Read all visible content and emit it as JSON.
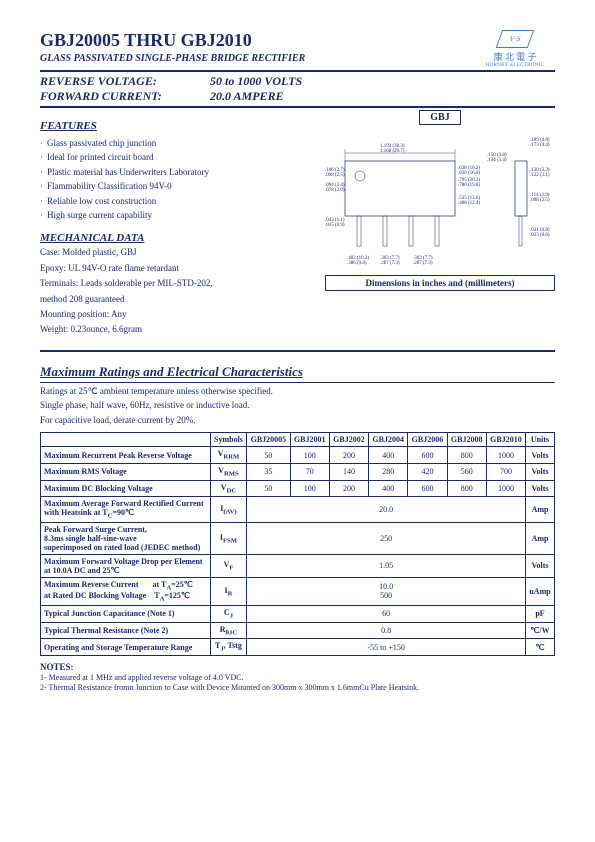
{
  "header": {
    "title": "GBJ20005 THRU GBJ2010",
    "subtitle": "GLASS PASSIVATED SINGLE-PHASE BRIDGE RECTIFIER",
    "reverse_voltage_label": "REVERSE VOLTAGE:",
    "reverse_voltage_value": "50 to 1000 VOLTS",
    "forward_current_label": "FORWARD CURRENT:",
    "forward_current_value": "20.0 AMPERE",
    "logo_text": "V·S",
    "logo_cn": "康 北 電 子",
    "logo_en": "HORNBY ELECTRONIC"
  },
  "features": {
    "title": "FEATURES",
    "items": [
      "Glass passivated chip junction",
      "Ideal for printed circuit board",
      "Plastic material has Underwriters Laboratory",
      "Flammability Classification 94V-0",
      "Reliable low cost construction",
      "High surge current capability"
    ]
  },
  "package": {
    "label": "GBJ",
    "caption": "Dimensions in inches and (millimeters)",
    "dims_front": [
      "1.193 (30.3)",
      "1.168 (29.7)",
      ".106 (2.7)",
      ".098 (2.5)",
      ".094 (2.4)",
      ".078 (2.0)",
      ".043 (1.1)",
      ".035 (0.9)",
      ".402 (10.2)",
      ".386 (9.8)",
      ".303 (7.7)",
      ".287 (7.3)",
      ".795 (20.2)",
      ".780 (19.8)",
      ".535 (13.6)",
      ".488 (12.4)",
      ".638 (16.2)",
      ".630 (16.0)"
    ],
    "dims_side": [
      ".189 (4.8)",
      ".173 (4.4)",
      ".150 (3.8)",
      ".134 (3.4)",
      ".130 (3.3)",
      ".122 (3.1)",
      ".114 (2.9)",
      ".098 (2.5)",
      ".031 (0.8)",
      ".023 (0.6)"
    ]
  },
  "mechanical": {
    "title": "MECHANICAL DATA",
    "lines": [
      "Case: Molded plastic, GBJ",
      "Epoxy: UL 94V-O rate flame retardant",
      "Terminals: Leads solderable per MIL-STD-202,",
      "method 208 guaranteed",
      "Mounting position: Any",
      "Weight: 0.23ounce, 6.6gram"
    ]
  },
  "ratings": {
    "title": "Maximum Ratings and Electrical Characteristics",
    "intro": [
      "Ratings at 25℃ ambient temperature unless otherwise specified.",
      "Single phase, half wave, 60Hz, resistive or inductive load.",
      "For capacitive load, derate current by 20%."
    ],
    "columns": [
      "Symbols",
      "GBJ20005",
      "GBJ2001",
      "GBJ2002",
      "GBJ2004",
      "GBJ2006",
      "GBJ2008",
      "GBJ2010",
      "Units"
    ],
    "rows": [
      {
        "desc": "Maximum Recurrent Peak Reverse Voltage",
        "sym": "V<sub>RRM</sub>",
        "vals": [
          "50",
          "100",
          "200",
          "400",
          "600",
          "800",
          "1000"
        ],
        "unit": "Volts"
      },
      {
        "desc": "Maximum RMS Voltage",
        "sym": "V<sub>RMS</sub>",
        "vals": [
          "35",
          "70",
          "140",
          "280",
          "420",
          "560",
          "700"
        ],
        "unit": "Volts"
      },
      {
        "desc": "Maximum DC Blocking Voltage",
        "sym": "V<sub>DC</sub>",
        "vals": [
          "50",
          "100",
          "200",
          "400",
          "600",
          "800",
          "1000"
        ],
        "unit": "Volts"
      },
      {
        "desc": "Maximum Average Forward Rectified Current<br>with Heatsink at T<sub>C</sub>=90℃",
        "sym": "I<sub>(AV)</sub>",
        "span": "20.0",
        "unit": "Amp"
      },
      {
        "desc": "Peak Forward Surge Current,<br>8.3ms single half-sine-wave<br>superimposed on rated load (JEDEC method)",
        "sym": "I<sub>FSM</sub>",
        "span": "250",
        "unit": "Amp"
      },
      {
        "desc": "Maximum Forward Voltage Drop per Element<br>at 10.0A DC and 25℃",
        "sym": "V<sub>F</sub>",
        "span": "1.05",
        "unit": "Volts"
      },
      {
        "desc": "Maximum Reverse Current&nbsp;&nbsp;&nbsp;&nbsp;&nbsp;&nbsp;&nbsp;at T<sub>A</sub>=25℃<br>at Rated DC Blocking Voltage&nbsp;&nbsp;&nbsp;&nbsp;T<sub>A</sub>=125℃",
        "sym": "I<sub>R</sub>",
        "span": "10.0<br>500",
        "unit": "uAmp"
      },
      {
        "desc": "Typical Junction Capacitance (Note 1)",
        "sym": "C<sub>J</sub>",
        "span": "60",
        "unit": "pF"
      },
      {
        "desc": "Typical Thermal Resistance (Note 2)",
        "sym": "R<sub>θJC</sub>",
        "span": "0.8",
        "unit": "℃/W"
      },
      {
        "desc": "Operating and Storage Temperature Range",
        "sym": "T<sub>J</sub>, Tstg",
        "span": "-55 to +150",
        "unit": "℃"
      }
    ]
  },
  "notes": {
    "title": "NOTES:",
    "items": [
      "1- Measured at 1 MHz and applied reverse voltage of 4.0 VDC.",
      "2- Thermal Resistance fromn Junction to Case with Device Mounted on 300mm x 300mm x 1.6mmCu Plate Heatsink."
    ]
  },
  "colors": {
    "primary": "#1a2a6c",
    "logo": "#3b7fc4"
  }
}
